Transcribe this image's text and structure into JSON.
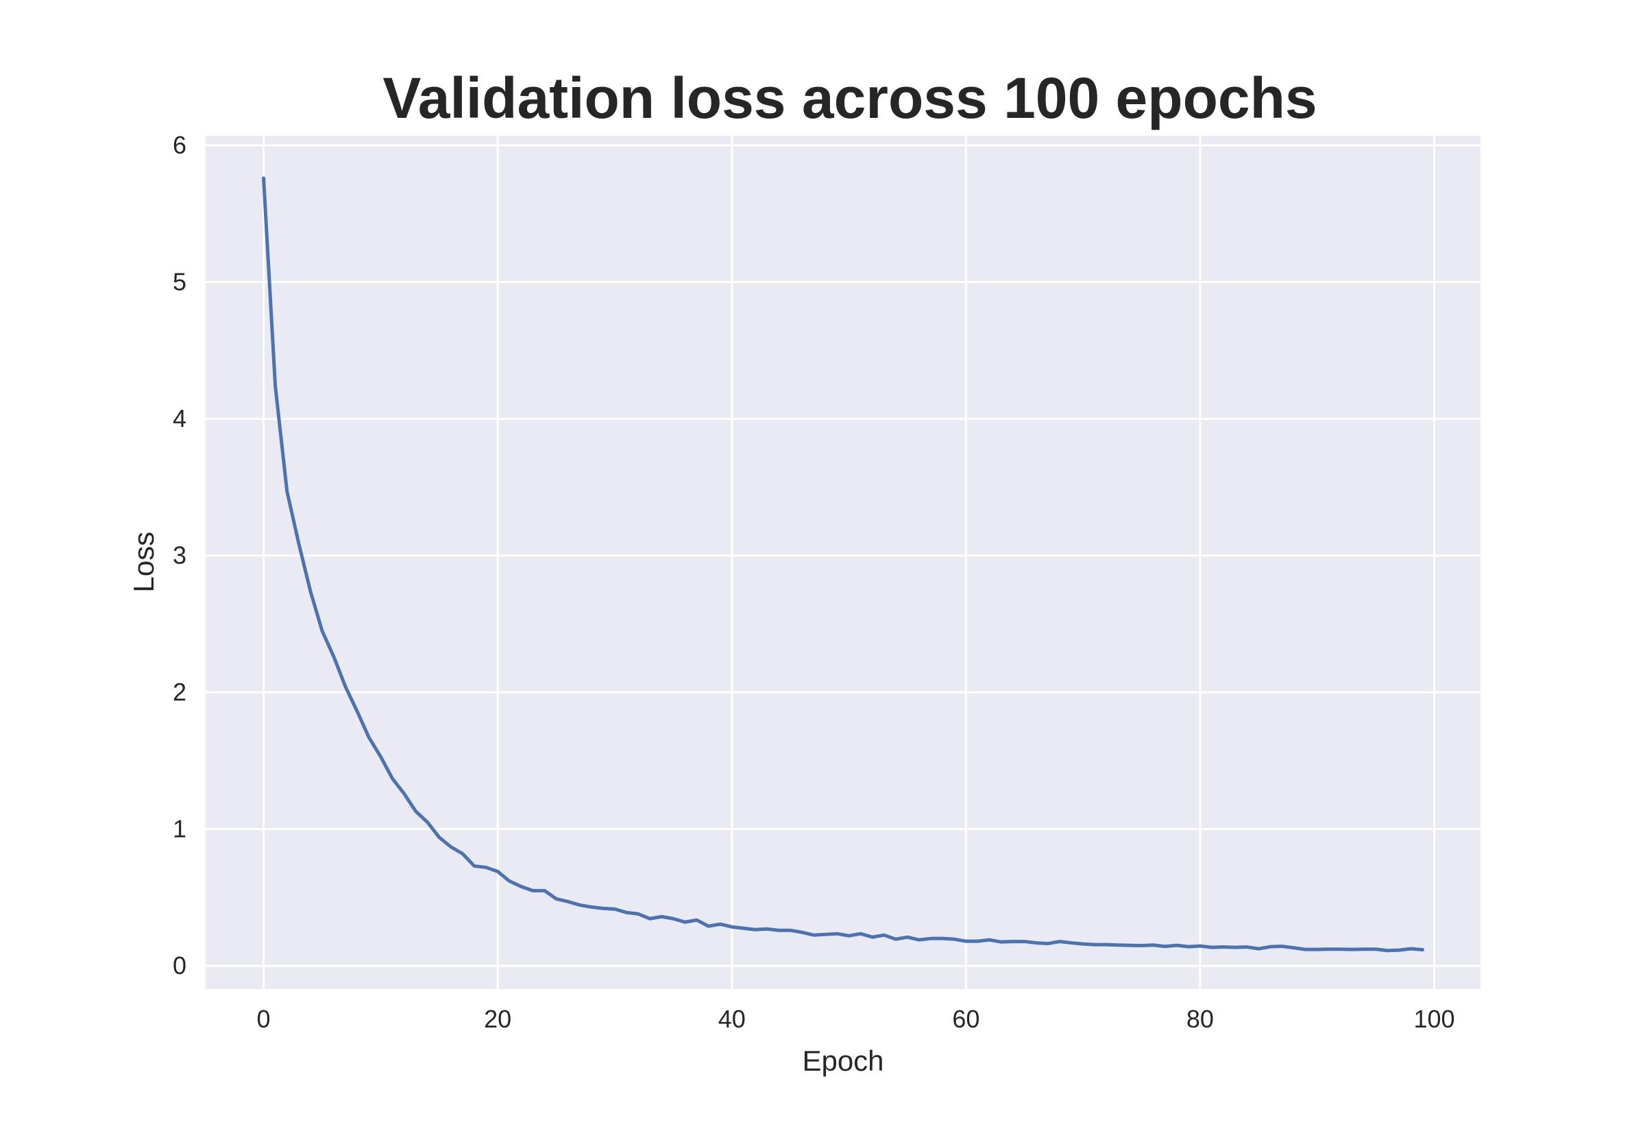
{
  "chart_data": {
    "type": "line",
    "title": "Validation loss across 100 epochs",
    "xlabel": "Epoch",
    "ylabel": "Loss",
    "xlim": [
      -4.95,
      103.95
    ],
    "ylim": [
      -0.17,
      6.07
    ],
    "xticks": [
      0,
      20,
      40,
      60,
      80,
      100
    ],
    "yticks": [
      0,
      1,
      2,
      3,
      4,
      5,
      6
    ],
    "grid": true,
    "legend": "none",
    "colors": {
      "background": "#EAEAF2",
      "grid": "#FFFFFF",
      "line": "#4C72B0",
      "text": "#262626"
    },
    "series": [
      {
        "x": [
          0,
          1,
          2,
          3,
          4,
          5,
          6,
          7,
          8,
          9,
          10,
          11,
          12,
          13,
          14,
          15,
          16,
          17,
          18,
          19,
          20,
          21,
          22,
          23,
          24,
          25,
          26,
          27,
          28,
          29,
          30,
          31,
          32,
          33,
          34,
          35,
          36,
          37,
          38,
          39,
          40,
          41,
          42,
          43,
          44,
          45,
          46,
          47,
          48,
          49,
          50,
          51,
          52,
          53,
          54,
          55,
          56,
          57,
          58,
          59,
          60,
          61,
          62,
          63,
          64,
          65,
          66,
          67,
          68,
          69,
          70,
          71,
          72,
          73,
          74,
          75,
          76,
          77,
          78,
          79,
          80,
          81,
          82,
          83,
          84,
          85,
          86,
          87,
          88,
          89,
          90,
          91,
          92,
          93,
          94,
          95,
          96,
          97,
          98,
          99
        ],
        "values": [
          5.76,
          4.24,
          3.47,
          3.09,
          2.74,
          2.45,
          2.26,
          2.04,
          1.86,
          1.67,
          1.53,
          1.37,
          1.26,
          1.13,
          1.05,
          0.94,
          0.87,
          0.82,
          0.73,
          0.72,
          0.69,
          0.62,
          0.58,
          0.55,
          0.55,
          0.49,
          0.47,
          0.445,
          0.43,
          0.42,
          0.415,
          0.39,
          0.38,
          0.345,
          0.36,
          0.345,
          0.32,
          0.335,
          0.29,
          0.305,
          0.285,
          0.275,
          0.265,
          0.27,
          0.26,
          0.26,
          0.245,
          0.225,
          0.23,
          0.235,
          0.22,
          0.235,
          0.21,
          0.225,
          0.195,
          0.21,
          0.19,
          0.2,
          0.2,
          0.195,
          0.18,
          0.18,
          0.19,
          0.175,
          0.178,
          0.178,
          0.168,
          0.163,
          0.178,
          0.168,
          0.16,
          0.155,
          0.155,
          0.152,
          0.15,
          0.148,
          0.152,
          0.142,
          0.15,
          0.14,
          0.145,
          0.135,
          0.138,
          0.135,
          0.138,
          0.125,
          0.14,
          0.143,
          0.132,
          0.12,
          0.12,
          0.122,
          0.122,
          0.12,
          0.122,
          0.122,
          0.112,
          0.115,
          0.125,
          0.118
        ]
      }
    ]
  }
}
